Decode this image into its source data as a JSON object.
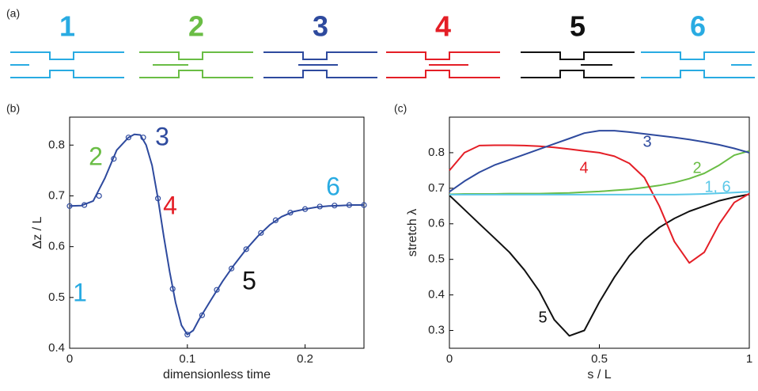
{
  "panel_a": {
    "label": "(a)",
    "items": [
      {
        "label": "1",
        "color": "#29abe2"
      },
      {
        "label": "2",
        "color": "#6abd45"
      },
      {
        "label": "3",
        "color": "#2e4a9e"
      },
      {
        "label": "4",
        "color": "#e41e26"
      },
      {
        "label": "5",
        "color": "#111111"
      },
      {
        "label": "6",
        "color": "#29abe2"
      }
    ]
  },
  "chart_data": [
    {
      "type": "line",
      "panel_label": "(b)",
      "x_label": "dimensionless time",
      "y_label": "Δz / L",
      "xlim": [
        0,
        0.25
      ],
      "ylim": [
        0.4,
        0.855
      ],
      "xticks": [
        0,
        0.1,
        0.2
      ],
      "yticks": [
        0.4,
        0.5,
        0.6,
        0.7,
        0.8
      ],
      "series": [
        {
          "style": "line",
          "color": "#2e4a9e",
          "x": [
            0,
            0.01,
            0.02,
            0.03,
            0.04,
            0.05,
            0.055,
            0.06,
            0.065,
            0.07,
            0.075,
            0.08,
            0.085,
            0.09,
            0.095,
            0.1,
            0.105,
            0.11,
            0.12,
            0.13,
            0.14,
            0.15,
            0.16,
            0.17,
            0.18,
            0.19,
            0.2,
            0.21,
            0.22,
            0.23,
            0.24,
            0.25
          ],
          "values": [
            0.68,
            0.681,
            0.69,
            0.735,
            0.79,
            0.815,
            0.821,
            0.82,
            0.8,
            0.76,
            0.695,
            0.62,
            0.55,
            0.49,
            0.445,
            0.427,
            0.435,
            0.457,
            0.495,
            0.532,
            0.565,
            0.595,
            0.621,
            0.643,
            0.659,
            0.669,
            0.674,
            0.678,
            0.68,
            0.681,
            0.682,
            0.682
          ]
        },
        {
          "style": "markers",
          "color": "#2e4a9e",
          "x": [
            0,
            0.0125,
            0.025,
            0.0375,
            0.05,
            0.0625,
            0.075,
            0.0875,
            0.1,
            0.1125,
            0.125,
            0.1375,
            0.15,
            0.1625,
            0.175,
            0.1875,
            0.2,
            0.2125,
            0.225,
            0.2375,
            0.25
          ],
          "values": [
            0.68,
            0.682,
            0.7,
            0.773,
            0.815,
            0.815,
            0.695,
            0.517,
            0.427,
            0.465,
            0.515,
            0.557,
            0.595,
            0.627,
            0.652,
            0.667,
            0.674,
            0.679,
            0.681,
            0.682,
            0.682
          ]
        }
      ],
      "annotations": [
        {
          "text": "1",
          "color": "#29abe2"
        },
        {
          "text": "2",
          "color": "#6abd45"
        },
        {
          "text": "3",
          "color": "#2e4a9e"
        },
        {
          "text": "4",
          "color": "#e41e26"
        },
        {
          "text": "5",
          "color": "#111111"
        },
        {
          "text": "6",
          "color": "#29abe2"
        }
      ]
    },
    {
      "type": "line",
      "panel_label": "(c)",
      "x_label": "s / L",
      "y_label": "stretch  λ",
      "xlim": [
        0,
        1
      ],
      "ylim": [
        0.25,
        0.9
      ],
      "xticks": [
        0,
        0.5,
        1
      ],
      "yticks": [
        0.3,
        0.4,
        0.5,
        0.6,
        0.7,
        0.8
      ],
      "x": [
        0,
        0.05,
        0.1,
        0.15,
        0.2,
        0.25,
        0.3,
        0.35,
        0.4,
        0.45,
        0.5,
        0.55,
        0.6,
        0.65,
        0.7,
        0.75,
        0.8,
        0.85,
        0.9,
        0.95,
        1
      ],
      "series": [
        {
          "name": "5",
          "color": "#111111",
          "values": [
            0.68,
            0.64,
            0.6,
            0.56,
            0.52,
            0.47,
            0.41,
            0.33,
            0.285,
            0.3,
            0.38,
            0.45,
            0.51,
            0.555,
            0.59,
            0.615,
            0.635,
            0.65,
            0.665,
            0.675,
            0.683
          ]
        },
        {
          "name": "2",
          "color": "#6abd45",
          "values": [
            0.683,
            0.684,
            0.684,
            0.684,
            0.685,
            0.685,
            0.685,
            0.686,
            0.687,
            0.689,
            0.691,
            0.694,
            0.697,
            0.702,
            0.708,
            0.716,
            0.727,
            0.742,
            0.765,
            0.793,
            0.805
          ]
        },
        {
          "name": "4",
          "color": "#e41e26",
          "values": [
            0.75,
            0.8,
            0.82,
            0.821,
            0.821,
            0.82,
            0.818,
            0.815,
            0.81,
            0.805,
            0.8,
            0.79,
            0.77,
            0.73,
            0.65,
            0.55,
            0.49,
            0.52,
            0.6,
            0.66,
            0.685
          ]
        },
        {
          "name": "3",
          "color": "#2e4a9e",
          "values": [
            0.69,
            0.72,
            0.745,
            0.765,
            0.78,
            0.795,
            0.81,
            0.825,
            0.84,
            0.855,
            0.862,
            0.862,
            0.858,
            0.853,
            0.848,
            0.843,
            0.837,
            0.83,
            0.822,
            0.812,
            0.8
          ]
        },
        {
          "name": "1, 6",
          "color": "#5bc8e8",
          "values": [
            0.682,
            0.682,
            0.682,
            0.682,
            0.682,
            0.682,
            0.682,
            0.682,
            0.682,
            0.682,
            0.682,
            0.682,
            0.682,
            0.682,
            0.682,
            0.682,
            0.683,
            0.684,
            0.686,
            0.688,
            0.69
          ]
        }
      ]
    }
  ]
}
